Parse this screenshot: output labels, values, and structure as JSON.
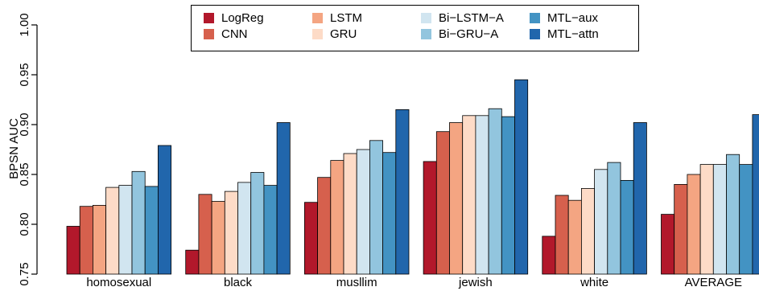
{
  "chart_data": {
    "type": "bar",
    "title": "",
    "xlabel": "",
    "ylabel": "BPSN AUC",
    "ylim": [
      0.75,
      1.0
    ],
    "yticks": [
      "0.75",
      "0.80",
      "0.85",
      "0.90",
      "0.95",
      "1.00"
    ],
    "grid": false,
    "legend_position": "top",
    "categories": [
      "homosexual",
      "black",
      "muslim",
      "jewish",
      "white",
      "AVERAGE"
    ],
    "category_labels": [
      "homosexual",
      "black",
      "musllim",
      "jewish",
      "white",
      "AVERAGE"
    ],
    "series": [
      {
        "name": "LogReg",
        "color": "#b2182b",
        "values": [
          0.798,
          0.774,
          0.822,
          0.863,
          0.788,
          0.81
        ]
      },
      {
        "name": "CNN",
        "color": "#d6604d",
        "values": [
          0.818,
          0.83,
          0.847,
          0.893,
          0.829,
          0.84
        ]
      },
      {
        "name": "LSTM",
        "color": "#f4a582",
        "values": [
          0.819,
          0.823,
          0.864,
          0.902,
          0.824,
          0.85
        ]
      },
      {
        "name": "GRU",
        "color": "#fddbc7",
        "values": [
          0.837,
          0.833,
          0.871,
          0.909,
          0.836,
          0.86
        ]
      },
      {
        "name": "Bi−LSTM−A",
        "color": "#d1e5f0",
        "values": [
          0.839,
          0.842,
          0.875,
          0.909,
          0.855,
          0.86
        ]
      },
      {
        "name": "Bi−GRU−A",
        "color": "#92c5de",
        "values": [
          0.853,
          0.852,
          0.884,
          0.916,
          0.862,
          0.87
        ]
      },
      {
        "name": "MTL−aux",
        "color": "#4393c3",
        "values": [
          0.838,
          0.839,
          0.872,
          0.908,
          0.844,
          0.86
        ]
      },
      {
        "name": "MTL−attn",
        "color": "#2166ac",
        "values": [
          0.879,
          0.902,
          0.915,
          0.945,
          0.902,
          0.91
        ]
      }
    ]
  }
}
